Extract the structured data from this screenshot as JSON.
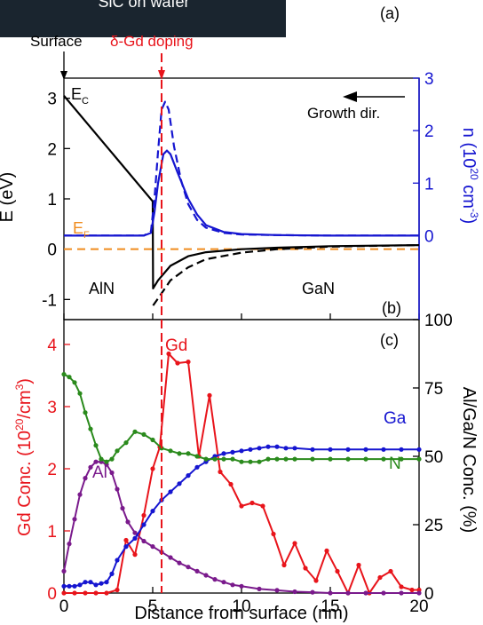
{
  "banner": {
    "text": "SiC on wafer"
  },
  "colors": {
    "black": "#000000",
    "red": "#e8141b",
    "blue": "#1515d0",
    "green": "#2a8a1c",
    "purple": "#7a1a8c",
    "orange": "#f08c1e",
    "banner_bg": "#1a252f"
  },
  "chart_data": [
    {
      "type": "line",
      "panel_label": "(a)",
      "annotations": {
        "surface": "Surface",
        "doping_prefix": "δ-Gd doping",
        "growth_dir": "Growth dir.",
        "left_material": "AlN",
        "right_material": "GaN"
      },
      "ylabel_left": "E (eV)",
      "ylabel_right": "n (10^20 cm^-3)",
      "ylabel_right_parts": {
        "a": "n (10",
        "b": "20",
        "c": " cm",
        "d": "-3",
        "e": ")"
      },
      "panel_b_label": "(b)",
      "ylim_left": [
        -1.4,
        3.4
      ],
      "yticks_left": [
        "-1",
        "0",
        "1",
        "2",
        "3"
      ],
      "ylim_right": [
        -1.6,
        3.0
      ],
      "yticks_right": [
        "0",
        "1",
        "2",
        "3"
      ],
      "xlim": [
        0,
        20
      ],
      "ec_label": {
        "main": "E",
        "sub": "C"
      },
      "ef_label": {
        "main": "E",
        "sub": "F"
      },
      "fermi_level": 0,
      "doping_position": 5.5,
      "series": [
        {
          "name": "E_C (solid)",
          "color": "black",
          "dash": false,
          "x": [
            0,
            5,
            5.02,
            5.3,
            6,
            7,
            8,
            10,
            12,
            15,
            20
          ],
          "y": [
            3.05,
            0.95,
            -0.78,
            -0.62,
            -0.33,
            -0.14,
            -0.06,
            0.0,
            0.03,
            0.06,
            0.08
          ]
        },
        {
          "name": "E_C (dashed)",
          "color": "black",
          "dash": true,
          "x": [
            5.02,
            5.3,
            6,
            7,
            8,
            10,
            12,
            15,
            20
          ],
          "y": [
            -1.12,
            -0.98,
            -0.62,
            -0.36,
            -0.2,
            -0.07,
            0.0,
            0.05,
            0.08
          ]
        },
        {
          "name": "n (solid)",
          "color": "blue",
          "dash": false,
          "x": [
            0,
            4.5,
            4.9,
            5.1,
            5.3,
            5.6,
            5.8,
            6.0,
            6.4,
            7.0,
            7.5,
            8,
            9,
            10,
            12,
            15,
            20
          ],
          "y": [
            0,
            0,
            0.05,
            0.45,
            1.0,
            1.55,
            1.62,
            1.55,
            1.2,
            0.7,
            0.4,
            0.2,
            0.07,
            0.03,
            0.01,
            0,
            0
          ]
        },
        {
          "name": "n (dashed)",
          "color": "blue",
          "dash": true,
          "x": [
            0,
            4.5,
            4.9,
            5.1,
            5.3,
            5.5,
            5.7,
            5.9,
            6.2,
            6.6,
            7.0,
            7.5,
            8,
            9,
            10,
            12,
            15,
            20
          ],
          "y": [
            0,
            0,
            0.08,
            0.7,
            1.6,
            2.4,
            2.55,
            2.4,
            1.7,
            1.05,
            0.6,
            0.3,
            0.15,
            0.05,
            0.02,
            0.01,
            0,
            0
          ]
        }
      ]
    },
    {
      "type": "line",
      "panel_label": "(c)",
      "xlabel": "Distance from surface (nm)",
      "xlim": [
        0,
        20
      ],
      "xticks": [
        "0",
        "5",
        "10",
        "15",
        "20"
      ],
      "ylabel_left": "Gd Conc. (10^20/cm^3)",
      "ylabel_left_parts": {
        "a": "Gd Conc. (10",
        "b": "20",
        "c": "/cm",
        "d": "3",
        "e": ")"
      },
      "ylim_left": [
        0,
        4.4
      ],
      "yticks_left": [
        "0",
        "1",
        "2",
        "3",
        "4"
      ],
      "ylabel_right": "Al/Ga/N Conc. (%)",
      "ylim_right": [
        0,
        100
      ],
      "yticks_right": [
        "0",
        "25",
        "50",
        "75",
        "100"
      ],
      "series": [
        {
          "name": "Gd",
          "axis": "left",
          "color": "red",
          "x": [
            0.0,
            0.6,
            1.2,
            1.8,
            2.4,
            3.0,
            3.5,
            4.0,
            4.5,
            5.0,
            5.4,
            5.9,
            6.4,
            7.0,
            7.6,
            8.2,
            8.8,
            9.4,
            10.0,
            10.6,
            11.2,
            11.8,
            12.4,
            13.0,
            13.6,
            14.2,
            14.8,
            15.4,
            16.0,
            16.6,
            17.2,
            17.8,
            18.4,
            19.0,
            19.6,
            20.0
          ],
          "y": [
            0.0,
            0.0,
            0.0,
            0.0,
            0.0,
            0.05,
            0.85,
            0.62,
            1.25,
            2.0,
            2.35,
            3.85,
            3.7,
            3.72,
            2.2,
            3.18,
            1.95,
            1.75,
            1.4,
            1.45,
            1.4,
            0.95,
            0.45,
            0.8,
            0.4,
            0.2,
            0.68,
            0.35,
            0.0,
            0.45,
            0.0,
            0.25,
            0.35,
            0.1,
            0.05,
            0.05
          ]
        },
        {
          "name": "Al",
          "axis": "right",
          "color": "purple",
          "x": [
            0.0,
            0.3,
            0.6,
            0.9,
            1.2,
            1.5,
            1.8,
            2.1,
            2.4,
            2.7,
            3.0,
            3.3,
            3.6,
            4.0,
            4.5,
            5.0,
            5.5,
            6.0,
            6.5,
            7.0,
            7.5,
            8.0,
            8.5,
            9.0,
            9.5,
            10.0,
            11.0,
            12.0,
            13.0,
            14.0,
            15.0,
            16.0,
            17.0,
            18.0,
            19.0,
            20.0
          ],
          "y": [
            8,
            18,
            27,
            36,
            42,
            46,
            48,
            48,
            47,
            44,
            38,
            31,
            26,
            22,
            19,
            17,
            15,
            13,
            11,
            9.5,
            8,
            6.5,
            5,
            4,
            3,
            2.5,
            1.5,
            1,
            0.5,
            0.3,
            0,
            0,
            0,
            0,
            0,
            0
          ]
        },
        {
          "name": "Ga",
          "axis": "right",
          "color": "blue",
          "x": [
            0.0,
            0.3,
            0.6,
            0.9,
            1.2,
            1.5,
            1.8,
            2.1,
            2.4,
            2.7,
            3.0,
            3.5,
            4.0,
            4.5,
            5.0,
            5.5,
            6.0,
            6.5,
            7.0,
            7.5,
            8.0,
            8.5,
            9.0,
            9.5,
            10.0,
            10.5,
            11.0,
            11.5,
            12.0,
            12.5,
            13.0,
            14.0,
            15.0,
            16.0,
            17.0,
            18.0,
            19.0,
            20.0
          ],
          "y": [
            2.5,
            2.5,
            2.5,
            3,
            4,
            4,
            3,
            3.5,
            4,
            7,
            12,
            17,
            20,
            25,
            30,
            34,
            37,
            40,
            43,
            46,
            48,
            50,
            51,
            51.5,
            52,
            52.5,
            53,
            53.5,
            53.5,
            53,
            53,
            52.5,
            52.5,
            52.5,
            52.5,
            52.5,
            52.5,
            52.5
          ]
        },
        {
          "name": "N",
          "axis": "right",
          "color": "green",
          "x": [
            0.0,
            0.3,
            0.6,
            0.9,
            1.2,
            1.5,
            1.8,
            2.1,
            2.4,
            2.7,
            3.0,
            3.5,
            4.0,
            4.5,
            5.0,
            5.5,
            6.0,
            6.5,
            7.0,
            7.5,
            8.0,
            8.5,
            9.0,
            9.5,
            10.0,
            10.5,
            11.0,
            11.5,
            12.0,
            12.5,
            13.0,
            14.0,
            15.0,
            16.0,
            17.0,
            18.0,
            19.0,
            20.0
          ],
          "y": [
            80,
            79,
            77,
            73,
            66,
            60,
            54,
            49,
            48,
            49,
            52,
            55,
            59,
            58,
            56,
            53,
            52,
            51,
            51,
            50,
            49,
            49,
            49,
            49,
            48,
            48,
            48,
            49,
            49,
            49,
            49,
            49,
            49,
            49,
            49,
            49,
            49,
            49
          ]
        }
      ]
    }
  ]
}
